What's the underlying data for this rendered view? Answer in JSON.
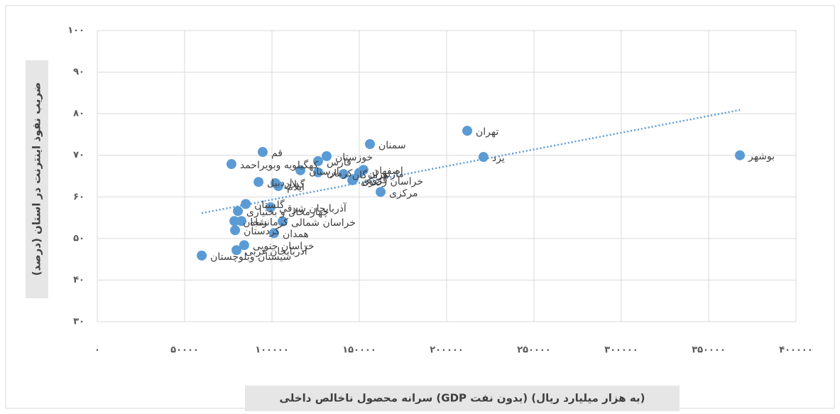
{
  "chart_data": {
    "type": "scatter",
    "x_label": "سرانه محصول ناخالص داخلی (GDP بدون نفت) (به هزار میلیارد ریال)",
    "y_label": "ضریب نفوذ اینترنت در استان (درصد)",
    "xlim": [
      0,
      400000
    ],
    "xticks": [
      {
        "value": 0,
        "label": "۰"
      },
      {
        "value": 50000,
        "label": "۵۰۰۰۰"
      },
      {
        "value": 100000,
        "label": "۱۰۰۰۰۰"
      },
      {
        "value": 150000,
        "label": "۱۵۰۰۰۰"
      },
      {
        "value": 200000,
        "label": "۲۰۰۰۰۰"
      },
      {
        "value": 250000,
        "label": "۲۵۰۰۰۰"
      },
      {
        "value": 300000,
        "label": "۳۰۰۰۰۰"
      },
      {
        "value": 350000,
        "label": "۳۵۰۰۰۰"
      },
      {
        "value": 400000,
        "label": "۴۰۰۰۰۰"
      }
    ],
    "ylim": [
      30,
      100
    ],
    "yticks": [
      {
        "value": 30,
        "label": "۳۰"
      },
      {
        "value": 40,
        "label": "۴۰"
      },
      {
        "value": 50,
        "label": "۵۰"
      },
      {
        "value": 60,
        "label": "۶۰"
      },
      {
        "value": 70,
        "label": "۷۰"
      },
      {
        "value": 80,
        "label": "۸۰"
      },
      {
        "value": 90,
        "label": "۹۰"
      },
      {
        "value": 100,
        "label": "۱۰۰"
      }
    ],
    "grid": true,
    "color": "#5b9bd5",
    "point_labels": [
      "بوشهر",
      "تهران",
      "یزد",
      "سمنان",
      "قم",
      "کهگیلویه وبویراحمد",
      "خوزستان",
      "فارس",
      "لرستان",
      "کرمان",
      "اصفهان",
      "قزوین",
      "اردبیل",
      "گیلان",
      "ایلام",
      "مرکزی",
      "گلستان",
      "آذربایجان شرقی",
      "چهارمحال و بختیاری",
      "زنجان",
      "کرمانشاه",
      "خراسان شمالی",
      "همدان",
      "کردستان",
      "خراسان جنوبی",
      "آذربایجان غربی",
      "سیستان وبلوچستان",
      "هرمزگان",
      "مازندران",
      "خراسان رضوی"
    ],
    "x": [
      367900,
      211800,
      221100,
      156100,
      94700,
      76800,
      131300,
      126400,
      116300,
      126400,
      152400,
      146700,
      92300,
      102000,
      103700,
      162200,
      85000,
      99200,
      80500,
      78500,
      82500,
      106100,
      101200,
      78900,
      84100,
      79700,
      59800,
      141000,
      150000,
      146000
    ],
    "values": [
      70.0,
      75.9,
      69.6,
      72.7,
      70.8,
      67.9,
      69.8,
      68.6,
      66.4,
      65.9,
      66.5,
      64.3,
      63.6,
      63.3,
      62.6,
      61.2,
      58.3,
      57.5,
      56.6,
      54.2,
      54.2,
      54.1,
      51.3,
      52.0,
      48.4,
      47.2,
      45.9,
      65.5,
      65.8,
      64.0
    ],
    "trendline": {
      "x": [
        59800,
        367900
      ],
      "values": [
        56.1,
        80.9
      ],
      "color": "#5b9bd5"
    }
  }
}
